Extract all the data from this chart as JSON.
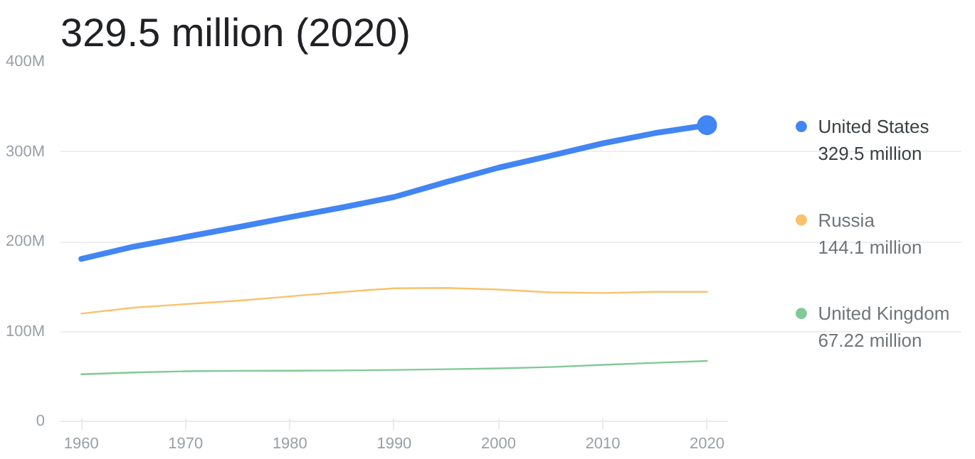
{
  "chart_data": {
    "type": "line",
    "title": "329.5 million (2020)",
    "x": [
      1960,
      1965,
      1970,
      1975,
      1980,
      1985,
      1990,
      1995,
      2000,
      2005,
      2010,
      2015,
      2020
    ],
    "series": [
      {
        "name": "United States",
        "color": "#4285f4",
        "values": [
          180.7,
          194.3,
          205.1,
          216,
          227.2,
          237.9,
          249.6,
          266.3,
          282.2,
          295.5,
          309.3,
          320.7,
          329.5
        ]
      },
      {
        "name": "Russia",
        "color": "#f9c26a",
        "values": [
          119.9,
          126.5,
          130.4,
          134.2,
          139.0,
          143.9,
          148.0,
          148.4,
          146.6,
          143.5,
          142.8,
          144.1,
          144.1
        ]
      },
      {
        "name": "United Kingdom",
        "color": "#81c995",
        "values": [
          52.4,
          54.3,
          55.7,
          56.2,
          56.3,
          56.6,
          57.2,
          58.0,
          58.9,
          60.4,
          62.8,
          65.1,
          67.2
        ]
      },
      {
        "type": "scatter",
        "color": "#4285f4",
        "x": [
          2020
        ],
        "values": [
          329.5
        ]
      }
    ],
    "annotations": [
      "329.5 million",
      "144.1 million",
      "67.22 million"
    ],
    "xlim": [
      1958,
      2022
    ],
    "ylim": [
      0,
      400
    ],
    "xticks": [
      1960,
      1970,
      1980,
      1990,
      2000,
      2010,
      2020
    ],
    "yticks": [
      {
        "value": 0,
        "label": "0"
      },
      {
        "value": 100,
        "label": "100M"
      },
      {
        "value": 200,
        "label": "200M"
      },
      {
        "value": 300,
        "label": "300M"
      },
      {
        "value": 400,
        "label": "400M"
      }
    ],
    "grid": "y",
    "legend": "right"
  }
}
